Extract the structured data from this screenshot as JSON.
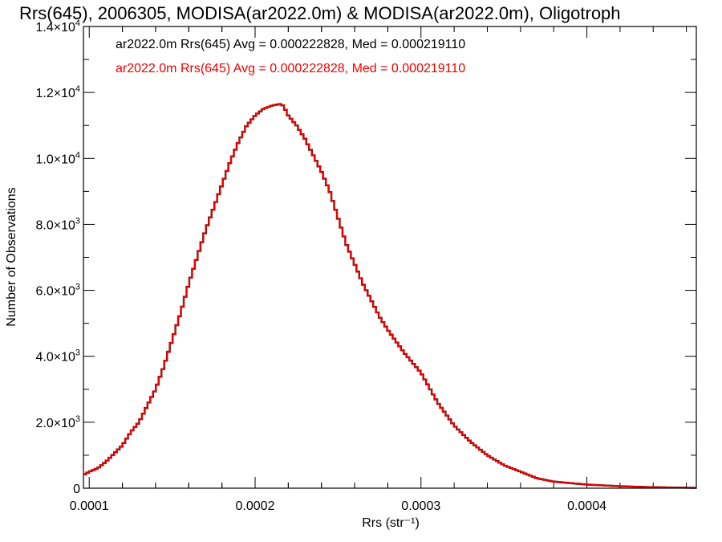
{
  "chart_data": {
    "type": "line",
    "title": "Rrs(645), 2006305, MODISA(ar2022.0m) & MODISA(ar2022.0m), Oligotroph",
    "xlabel": "Rrs (str⁻¹)",
    "ylabel": "Number of Observations",
    "xlim": [
      9.65e-05,
      0.000466
    ],
    "ylim": [
      0,
      14000
    ],
    "x_ticks": [
      {
        "value": 0.0001,
        "label": "0.0001"
      },
      {
        "value": 0.0002,
        "label": "0.0002"
      },
      {
        "value": 0.0003,
        "label": "0.0003"
      },
      {
        "value": 0.0004,
        "label": "0.0004"
      }
    ],
    "y_ticks": [
      {
        "value": 0,
        "label": "0"
      },
      {
        "value": 2000,
        "mant": "2.0",
        "exp": "3"
      },
      {
        "value": 4000,
        "mant": "4.0",
        "exp": "3"
      },
      {
        "value": 6000,
        "mant": "6.0",
        "exp": "3"
      },
      {
        "value": 8000,
        "mant": "8.0",
        "exp": "3"
      },
      {
        "value": 10000,
        "mant": "1.0",
        "exp": "4"
      },
      {
        "value": 12000,
        "mant": "1.2",
        "exp": "4"
      },
      {
        "value": 14000,
        "mant": "1.4",
        "exp": "4"
      }
    ],
    "annotations": [
      {
        "text": "ar2022.0m Rrs(645) Avg = 0.000222828, Med = 0.000219110",
        "color": "#000000"
      },
      {
        "text": "ar2022.0m Rrs(645) Avg = 0.000222828, Med = 0.000219110",
        "color": "#ee0000"
      }
    ],
    "series": [
      {
        "color": "#000000",
        "x": [
          9.65e-05,
          0.0001,
          0.000105,
          0.00011,
          0.000115,
          0.00012,
          0.000125,
          0.00013,
          0.000135,
          0.00014,
          0.000145,
          0.00015,
          0.000155,
          0.00016,
          0.000165,
          0.00017,
          0.000175,
          0.00018,
          0.000185,
          0.00019,
          0.000195,
          0.0002,
          0.000205,
          0.00021,
          0.000215,
          0.000217,
          0.00022,
          0.000225,
          0.00023,
          0.000235,
          0.00024,
          0.000245,
          0.00025,
          0.000255,
          0.00026,
          0.000265,
          0.00027,
          0.000275,
          0.00028,
          0.000285,
          0.00029,
          0.000295,
          0.0003,
          0.000305,
          0.00031,
          0.00032,
          0.00033,
          0.00034,
          0.00035,
          0.00036,
          0.00037,
          0.00038,
          0.0004,
          0.00042,
          0.00044,
          0.000466
        ],
        "y": [
          400,
          500,
          600,
          800,
          1050,
          1300,
          1700,
          2000,
          2500,
          3000,
          3700,
          4500,
          5300,
          6200,
          7000,
          7800,
          8500,
          9200,
          9900,
          10500,
          11000,
          11300,
          11500,
          11600,
          11650,
          11600,
          11300,
          11000,
          10600,
          10100,
          9600,
          9000,
          8200,
          7400,
          6800,
          6200,
          5700,
          5200,
          4800,
          4450,
          4100,
          3800,
          3500,
          3050,
          2600,
          1900,
          1400,
          1000,
          700,
          500,
          300,
          200,
          110,
          60,
          30,
          10
        ]
      },
      {
        "color": "#ee0000",
        "x": [
          9.65e-05,
          0.0001,
          0.000105,
          0.00011,
          0.000115,
          0.00012,
          0.000125,
          0.00013,
          0.000135,
          0.00014,
          0.000145,
          0.00015,
          0.000155,
          0.00016,
          0.000165,
          0.00017,
          0.000175,
          0.00018,
          0.000185,
          0.00019,
          0.000195,
          0.0002,
          0.000205,
          0.00021,
          0.000215,
          0.000217,
          0.00022,
          0.000225,
          0.00023,
          0.000235,
          0.00024,
          0.000245,
          0.00025,
          0.000255,
          0.00026,
          0.000265,
          0.00027,
          0.000275,
          0.00028,
          0.000285,
          0.00029,
          0.000295,
          0.0003,
          0.000305,
          0.00031,
          0.00032,
          0.00033,
          0.00034,
          0.00035,
          0.00036,
          0.00037,
          0.00038,
          0.0004,
          0.00042,
          0.00044,
          0.000466
        ],
        "y": [
          400,
          500,
          600,
          800,
          1050,
          1300,
          1700,
          2000,
          2500,
          3000,
          3700,
          4500,
          5300,
          6200,
          7000,
          7800,
          8500,
          9200,
          9900,
          10500,
          11000,
          11300,
          11500,
          11600,
          11650,
          11600,
          11300,
          11000,
          10600,
          10100,
          9600,
          9000,
          8200,
          7400,
          6800,
          6200,
          5700,
          5200,
          4800,
          4450,
          4100,
          3800,
          3500,
          3050,
          2600,
          1900,
          1400,
          1000,
          700,
          500,
          300,
          200,
          110,
          60,
          30,
          10
        ]
      }
    ]
  }
}
